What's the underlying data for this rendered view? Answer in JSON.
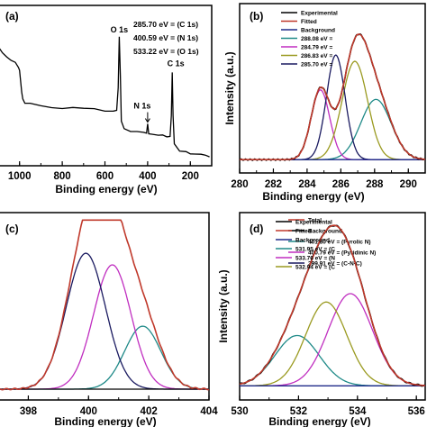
{
  "chart_data": [
    {
      "panel": "(a)",
      "type": "line",
      "xlabel": "Binding energy (eV)",
      "ylabel": "",
      "xlim": [
        1100,
        100
      ],
      "xticks": [
        1000,
        800,
        600,
        400,
        200
      ],
      "annotation_lines": [
        "285.70 eV = (C 1s)",
        "400.59 eV = (N 1s)",
        "533.22 eV = (O 1s)"
      ],
      "peak_labels": [
        {
          "text": "O 1s",
          "x": 533
        },
        {
          "text": "N 1s",
          "x": 400
        },
        {
          "text": "C 1s",
          "x": 285
        }
      ],
      "series": [
        {
          "color": "#000000",
          "points": [
            [
              1100,
              0.8
            ],
            [
              1080,
              0.76
            ],
            [
              1060,
              0.73
            ],
            [
              1040,
              0.7
            ],
            [
              1020,
              0.68
            ],
            [
              1005,
              0.65
            ],
            [
              1000,
              0.62
            ],
            [
              990,
              0.48
            ],
            [
              985,
              0.42
            ],
            [
              975,
              0.4
            ],
            [
              950,
              0.39
            ],
            [
              900,
              0.38
            ],
            [
              850,
              0.37
            ],
            [
              800,
              0.36
            ],
            [
              750,
              0.36
            ],
            [
              700,
              0.35
            ],
            [
              650,
              0.35
            ],
            [
              600,
              0.34
            ],
            [
              560,
              0.33
            ],
            [
              545,
              0.34
            ],
            [
              538,
              0.5
            ],
            [
              533,
              0.86
            ],
            [
              528,
              0.6
            ],
            [
              523,
              0.27
            ],
            [
              510,
              0.21
            ],
            [
              480,
              0.2
            ],
            [
              450,
              0.19
            ],
            [
              420,
              0.18
            ],
            [
              405,
              0.18
            ],
            [
              400,
              0.24
            ],
            [
              395,
              0.18
            ],
            [
              380,
              0.17
            ],
            [
              350,
              0.16
            ],
            [
              330,
              0.16
            ],
            [
              310,
              0.15
            ],
            [
              295,
              0.15
            ],
            [
              289,
              0.3
            ],
            [
              285,
              0.62
            ],
            [
              281,
              0.3
            ],
            [
              275,
              0.1
            ],
            [
              250,
              0.06
            ],
            [
              220,
              0.05
            ],
            [
              200,
              0.04
            ],
            [
              180,
              0.04
            ],
            [
              150,
              0.03
            ],
            [
              130,
              0.03
            ],
            [
              110,
              0.02
            ]
          ]
        }
      ]
    },
    {
      "panel": "(b)",
      "type": "line",
      "xlabel": "Binding energy (eV)",
      "ylabel": "Intensity (a.u.)",
      "xlim": [
        280,
        291
      ],
      "xticks": [
        280,
        282,
        284,
        286,
        288,
        290
      ],
      "series": [
        {
          "name": "Experimental",
          "color": "#000000",
          "type": "gaussian-sum",
          "components": [
            1,
            2,
            3,
            4,
            5
          ]
        },
        {
          "name": "Fitted",
          "color": "#c0392b",
          "type": "gaussian-sum",
          "components": [
            1,
            2,
            3,
            4,
            5
          ]
        },
        {
          "name": "Background",
          "color": "#1f2a8a",
          "type": "flat",
          "level": 0.05
        },
        {
          "name": "288.08 eV =",
          "color": "#1f8a88",
          "type": "gaussian",
          "center": 288.08,
          "amp": 0.38,
          "sigma": 0.9
        },
        {
          "name": "284.79 eV =",
          "color": "#c02ec0",
          "type": "gaussian",
          "center": 284.79,
          "amp": 0.44,
          "sigma": 0.55
        },
        {
          "name": "286.83 eV =",
          "color": "#9a9a20",
          "type": "gaussian",
          "center": 286.83,
          "amp": 0.62,
          "sigma": 0.75
        },
        {
          "name": "285.70 eV =",
          "color": "#1a1a60",
          "type": "gaussian",
          "center": 285.7,
          "amp": 0.66,
          "sigma": 0.55
        }
      ]
    },
    {
      "panel": "(c)",
      "type": "line",
      "xlabel": "Binding energy (eV)",
      "ylabel": "",
      "xlim": [
        397,
        404
      ],
      "xticks": [
        398,
        400,
        402,
        404
      ],
      "series": [
        {
          "name": "Total",
          "color": "#c0392b",
          "type": "gaussian-sum",
          "components": [
            2,
            3,
            4
          ]
        },
        {
          "name": "Background",
          "color": "#000000",
          "type": "flat",
          "level": 0.0
        },
        {
          "name": "401.80 eV = (Pyrolic N)",
          "color": "#1f8a88",
          "type": "gaussian",
          "center": 401.8,
          "amp": 0.38,
          "sigma": 0.6
        },
        {
          "name": "400.79 eV = (Pyridinic N)",
          "color": "#c02ec0",
          "type": "gaussian",
          "center": 400.79,
          "amp": 0.75,
          "sigma": 0.62
        },
        {
          "name": "399.91 eV = (C-N-C)",
          "color": "#1a1a60",
          "type": "gaussian",
          "center": 399.91,
          "amp": 0.82,
          "sigma": 0.65
        }
      ]
    },
    {
      "panel": "(d)",
      "type": "line",
      "xlabel": "Binding energy (eV)",
      "ylabel": "Intensity (a.u.)",
      "xlim": [
        530,
        536.3
      ],
      "xticks": [
        530,
        532,
        534,
        536
      ],
      "series": [
        {
          "name": "Experimental",
          "color": "#000000",
          "type": "gaussian-sum",
          "components": [
            3,
            4,
            5
          ]
        },
        {
          "name": "Fitted",
          "color": "#c0392b",
          "type": "gaussian-sum",
          "components": [
            3,
            4,
            5
          ]
        },
        {
          "name": "Background",
          "color": "#1f2a8a",
          "type": "flat",
          "level": 0.02
        },
        {
          "name": "531.95 eV = (C",
          "color": "#1f8a88",
          "type": "gaussian",
          "center": 531.95,
          "amp": 0.3,
          "sigma": 0.75
        },
        {
          "name": "533.76 eV = (N",
          "color": "#c02ec0",
          "type": "gaussian",
          "center": 533.76,
          "amp": 0.55,
          "sigma": 0.75
        },
        {
          "name": "532.94 eV = (C",
          "color": "#9a9a20",
          "type": "gaussian",
          "center": 532.94,
          "amp": 0.5,
          "sigma": 0.7
        }
      ]
    }
  ]
}
